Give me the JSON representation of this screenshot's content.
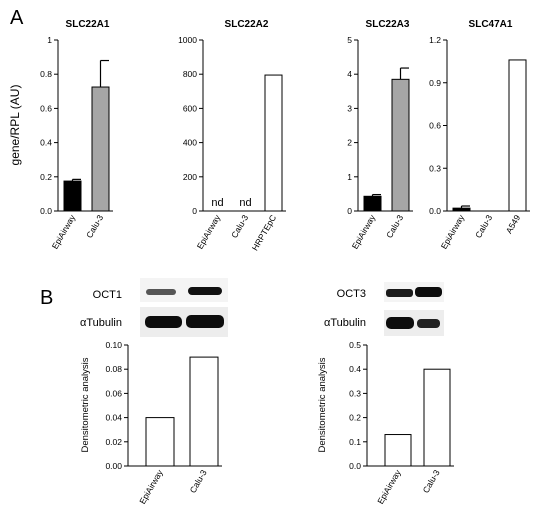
{
  "panel_labels": [
    "A",
    "B"
  ],
  "chart_data": [
    {
      "type": "bar",
      "panel": "A",
      "title": "SLC22A1",
      "ylabel": "gene/RPL (AU)",
      "categories": [
        "EpiAirway",
        "Calu-3"
      ],
      "values": [
        0.175,
        0.725
      ],
      "errors": [
        0.01,
        0.155
      ],
      "bar_colors": [
        "#000000",
        "#a6a6a6"
      ],
      "annotations": [
        "",
        ""
      ],
      "ylim": [
        0,
        1.0
      ],
      "yticks": [
        0.0,
        0.2,
        0.4,
        0.6,
        0.8,
        1.0
      ],
      "ytick_labels": [
        "0.0",
        "0.2",
        "0.4",
        "0.6",
        "0.8",
        "1"
      ]
    },
    {
      "type": "bar",
      "panel": "A",
      "title": "SLC22A2",
      "categories": [
        "EpiAirway",
        "Calu-3",
        "HRPTEpC"
      ],
      "values": [
        0,
        0,
        795
      ],
      "errors": [
        0,
        0,
        0
      ],
      "bar_colors": [
        "#000000",
        "#a6a6a6",
        "#ffffff"
      ],
      "annotations": [
        "nd",
        "nd",
        ""
      ],
      "ylim": [
        0,
        1000
      ],
      "yticks": [
        0,
        200,
        400,
        600,
        800,
        1000
      ],
      "ytick_labels": [
        "0",
        "200",
        "400",
        "600",
        "800",
        "1000"
      ]
    },
    {
      "type": "bar",
      "panel": "A",
      "title": "SLC22A3",
      "categories": [
        "EpiAirway",
        "Calu-3"
      ],
      "values": [
        0.43,
        3.85
      ],
      "errors": [
        0.05,
        0.33
      ],
      "bar_colors": [
        "#000000",
        "#a6a6a6"
      ],
      "annotations": [
        "",
        ""
      ],
      "ylim": [
        0,
        5
      ],
      "yticks": [
        0,
        1,
        2,
        3,
        4,
        5
      ],
      "ytick_labels": [
        "0",
        "1",
        "2",
        "3",
        "4",
        "5"
      ]
    },
    {
      "type": "bar",
      "panel": "A",
      "title": "SLC47A1",
      "categories": [
        "EpiAirway",
        "Calu-3",
        "A549"
      ],
      "values": [
        0.02,
        0.0,
        1.06
      ],
      "errors": [
        0.015,
        0,
        0
      ],
      "bar_colors": [
        "#000000",
        "#a6a6a6",
        "#ffffff"
      ],
      "annotations": [
        "",
        "",
        ""
      ],
      "ylim": [
        0,
        1.2
      ],
      "yticks": [
        0.0,
        0.3,
        0.6,
        0.9,
        1.2
      ],
      "ytick_labels": [
        "0.0",
        "0.3",
        "0.6",
        "0.9",
        "1.2"
      ]
    },
    {
      "type": "bar",
      "panel": "B",
      "blot_labels": [
        "OCT1",
        "αTubulin"
      ],
      "ylabel": "Densitometric analysis",
      "categories": [
        "EpiAirway",
        "Calu-3"
      ],
      "values": [
        0.04,
        0.09
      ],
      "errors": [
        0,
        0
      ],
      "bar_colors": [
        "#ffffff",
        "#ffffff"
      ],
      "annotations": [
        "",
        ""
      ],
      "ylim": [
        0,
        0.1
      ],
      "yticks": [
        0.0,
        0.02,
        0.04,
        0.06,
        0.08,
        0.1
      ],
      "ytick_labels": [
        "0.00",
        "0.02",
        "0.04",
        "0.06",
        "0.08",
        "0.10"
      ]
    },
    {
      "type": "bar",
      "panel": "B",
      "blot_labels": [
        "OCT3",
        "αTubulin"
      ],
      "ylabel": "Densitometric analysis",
      "categories": [
        "EpiAirway",
        "Calu-3"
      ],
      "values": [
        0.13,
        0.4
      ],
      "errors": [
        0,
        0
      ],
      "bar_colors": [
        "#ffffff",
        "#ffffff"
      ],
      "annotations": [
        "",
        ""
      ],
      "ylim": [
        0,
        0.5
      ],
      "yticks": [
        0.0,
        0.1,
        0.2,
        0.3,
        0.4,
        0.5
      ],
      "ytick_labels": [
        "0.0",
        "0.1",
        "0.2",
        "0.3",
        "0.4",
        "0.5"
      ]
    }
  ]
}
